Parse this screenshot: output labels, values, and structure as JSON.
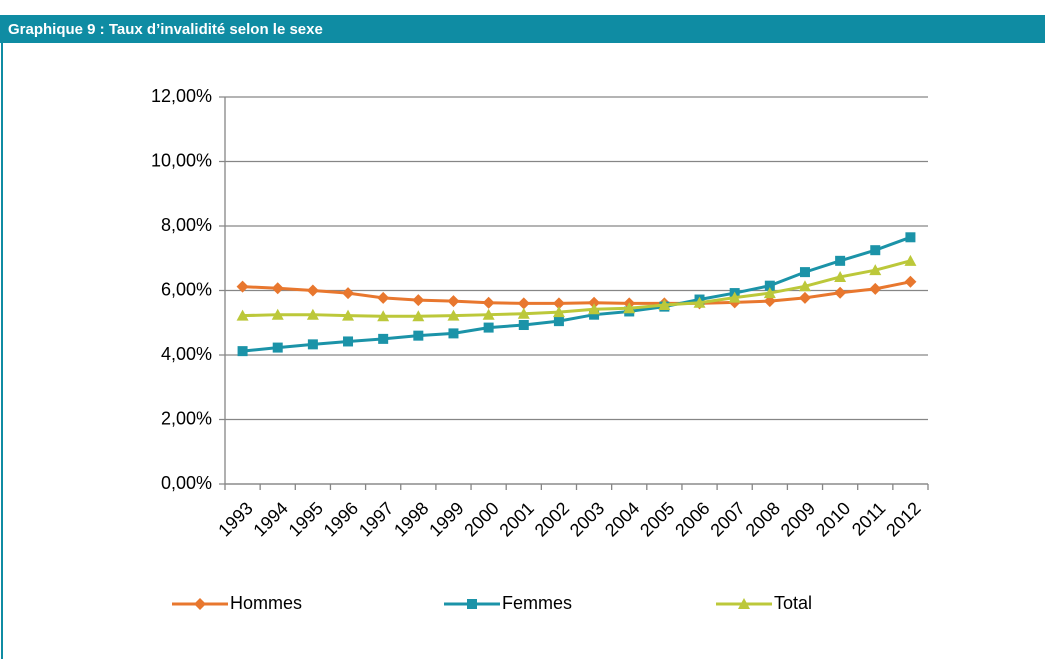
{
  "chart_data": {
    "type": "line",
    "title": "Graphique 9 : Taux d’invalidité selon le sexe",
    "categories": [
      "1993",
      "1994",
      "1995",
      "1996",
      "1997",
      "1998",
      "1999",
      "2000",
      "2001",
      "2002",
      "2003",
      "2004",
      "2005",
      "2006",
      "2007",
      "2008",
      "2009",
      "2010",
      "2011",
      "2012"
    ],
    "series": [
      {
        "name": "Hommes",
        "color": "#e8772e",
        "marker": "diamond",
        "values": [
          6.12,
          6.07,
          6.0,
          5.92,
          5.77,
          5.7,
          5.67,
          5.62,
          5.6,
          5.6,
          5.62,
          5.6,
          5.6,
          5.6,
          5.63,
          5.67,
          5.77,
          5.93,
          6.05,
          6.27
        ]
      },
      {
        "name": "Femmes",
        "color": "#1b93a8",
        "marker": "square",
        "values": [
          4.12,
          4.23,
          4.33,
          4.42,
          4.5,
          4.6,
          4.67,
          4.85,
          4.93,
          5.05,
          5.25,
          5.35,
          5.5,
          5.72,
          5.92,
          6.15,
          6.57,
          6.92,
          7.25,
          7.65
        ]
      },
      {
        "name": "Total",
        "color": "#bcc83a",
        "marker": "triangle",
        "values": [
          5.22,
          5.25,
          5.25,
          5.22,
          5.2,
          5.2,
          5.22,
          5.25,
          5.28,
          5.33,
          5.42,
          5.45,
          5.55,
          5.62,
          5.78,
          5.92,
          6.13,
          6.42,
          6.63,
          6.92
        ]
      }
    ],
    "ylim": [
      0,
      12
    ],
    "yticks": [
      {
        "value": 0,
        "label": "0,00%"
      },
      {
        "value": 2,
        "label": "2,00%"
      },
      {
        "value": 4,
        "label": "4,00%"
      },
      {
        "value": 6,
        "label": "6,00%"
      },
      {
        "value": 8,
        "label": "8,00%"
      },
      {
        "value": 10,
        "label": "10,00%"
      },
      {
        "value": 12,
        "label": "12,00%"
      }
    ],
    "grid": true,
    "legend": "bottom"
  }
}
